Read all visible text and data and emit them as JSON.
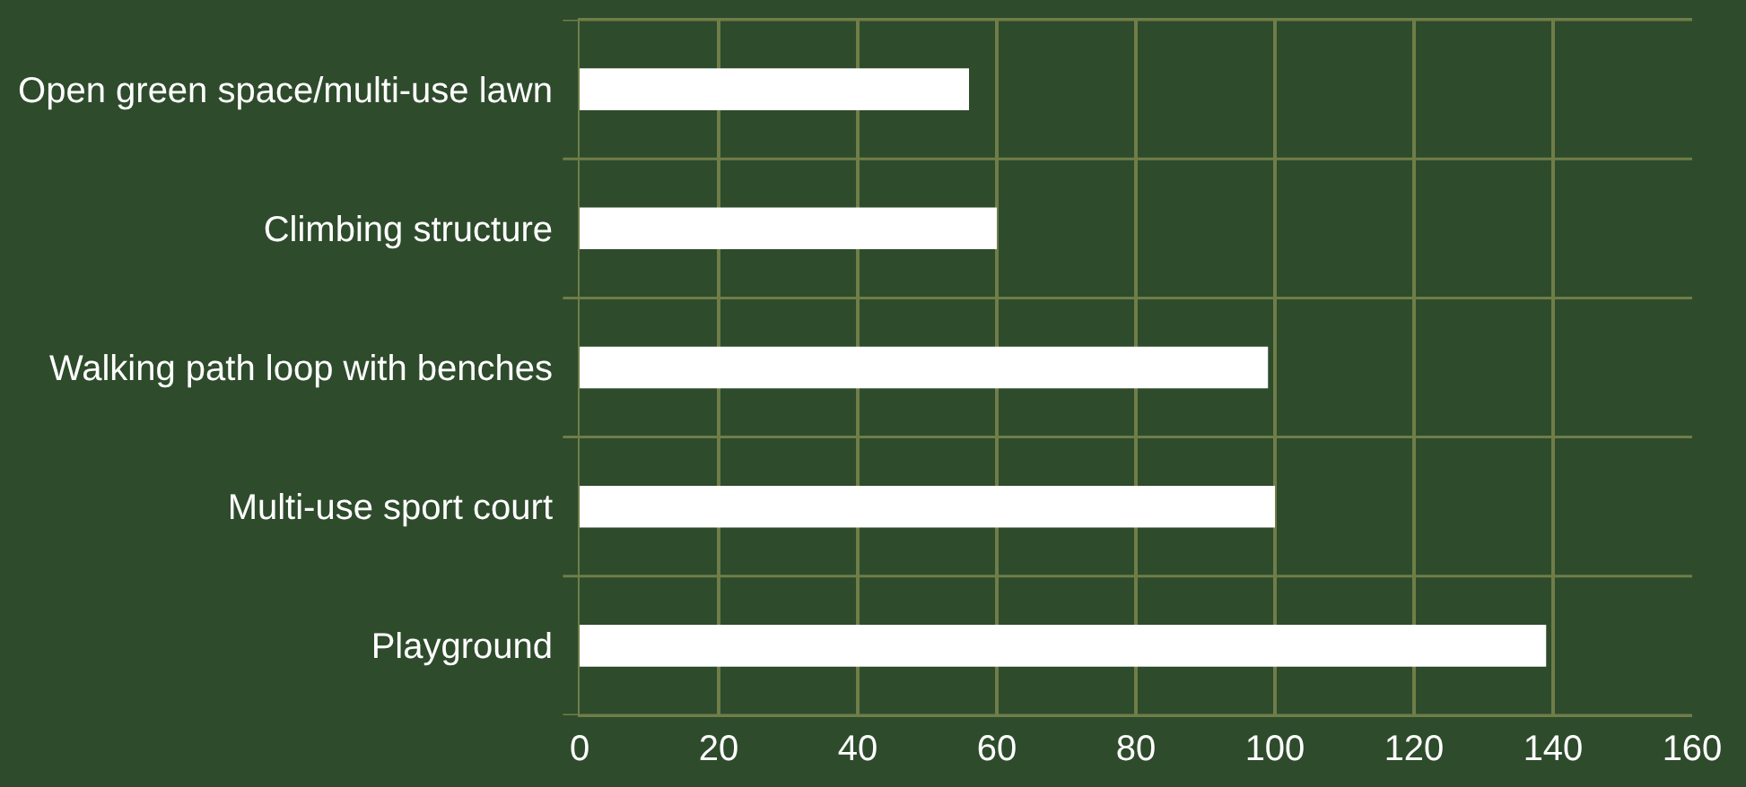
{
  "chart_data": {
    "type": "bar",
    "orientation": "horizontal",
    "categories": [
      "Open green space/multi-use lawn",
      "Climbing structure",
      "Walking path loop with benches",
      "Multi-use sport court",
      "Playground"
    ],
    "values": [
      56,
      60,
      99,
      100,
      139
    ],
    "color": "#ffffff",
    "xlim": [
      0,
      160
    ],
    "xticks": [
      0,
      20,
      40,
      60,
      80,
      100,
      120,
      140,
      160
    ],
    "grid": true
  }
}
